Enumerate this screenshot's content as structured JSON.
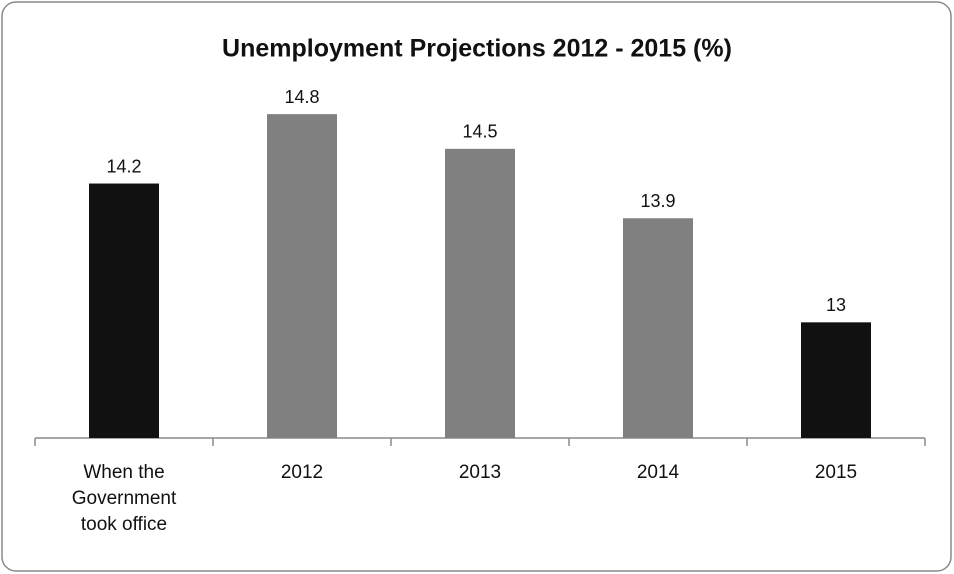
{
  "chart_data": {
    "type": "bar",
    "title": "Unemployment Projections 2012 - 2015 (%)",
    "categories": [
      "When the Government took office",
      "2012",
      "2013",
      "2014",
      "2015"
    ],
    "values": [
      14.2,
      14.8,
      14.5,
      13.9,
      13
    ],
    "colors": [
      "#111111",
      "#808080",
      "#808080",
      "#808080",
      "#111111"
    ],
    "ylim": [
      12,
      15
    ]
  }
}
